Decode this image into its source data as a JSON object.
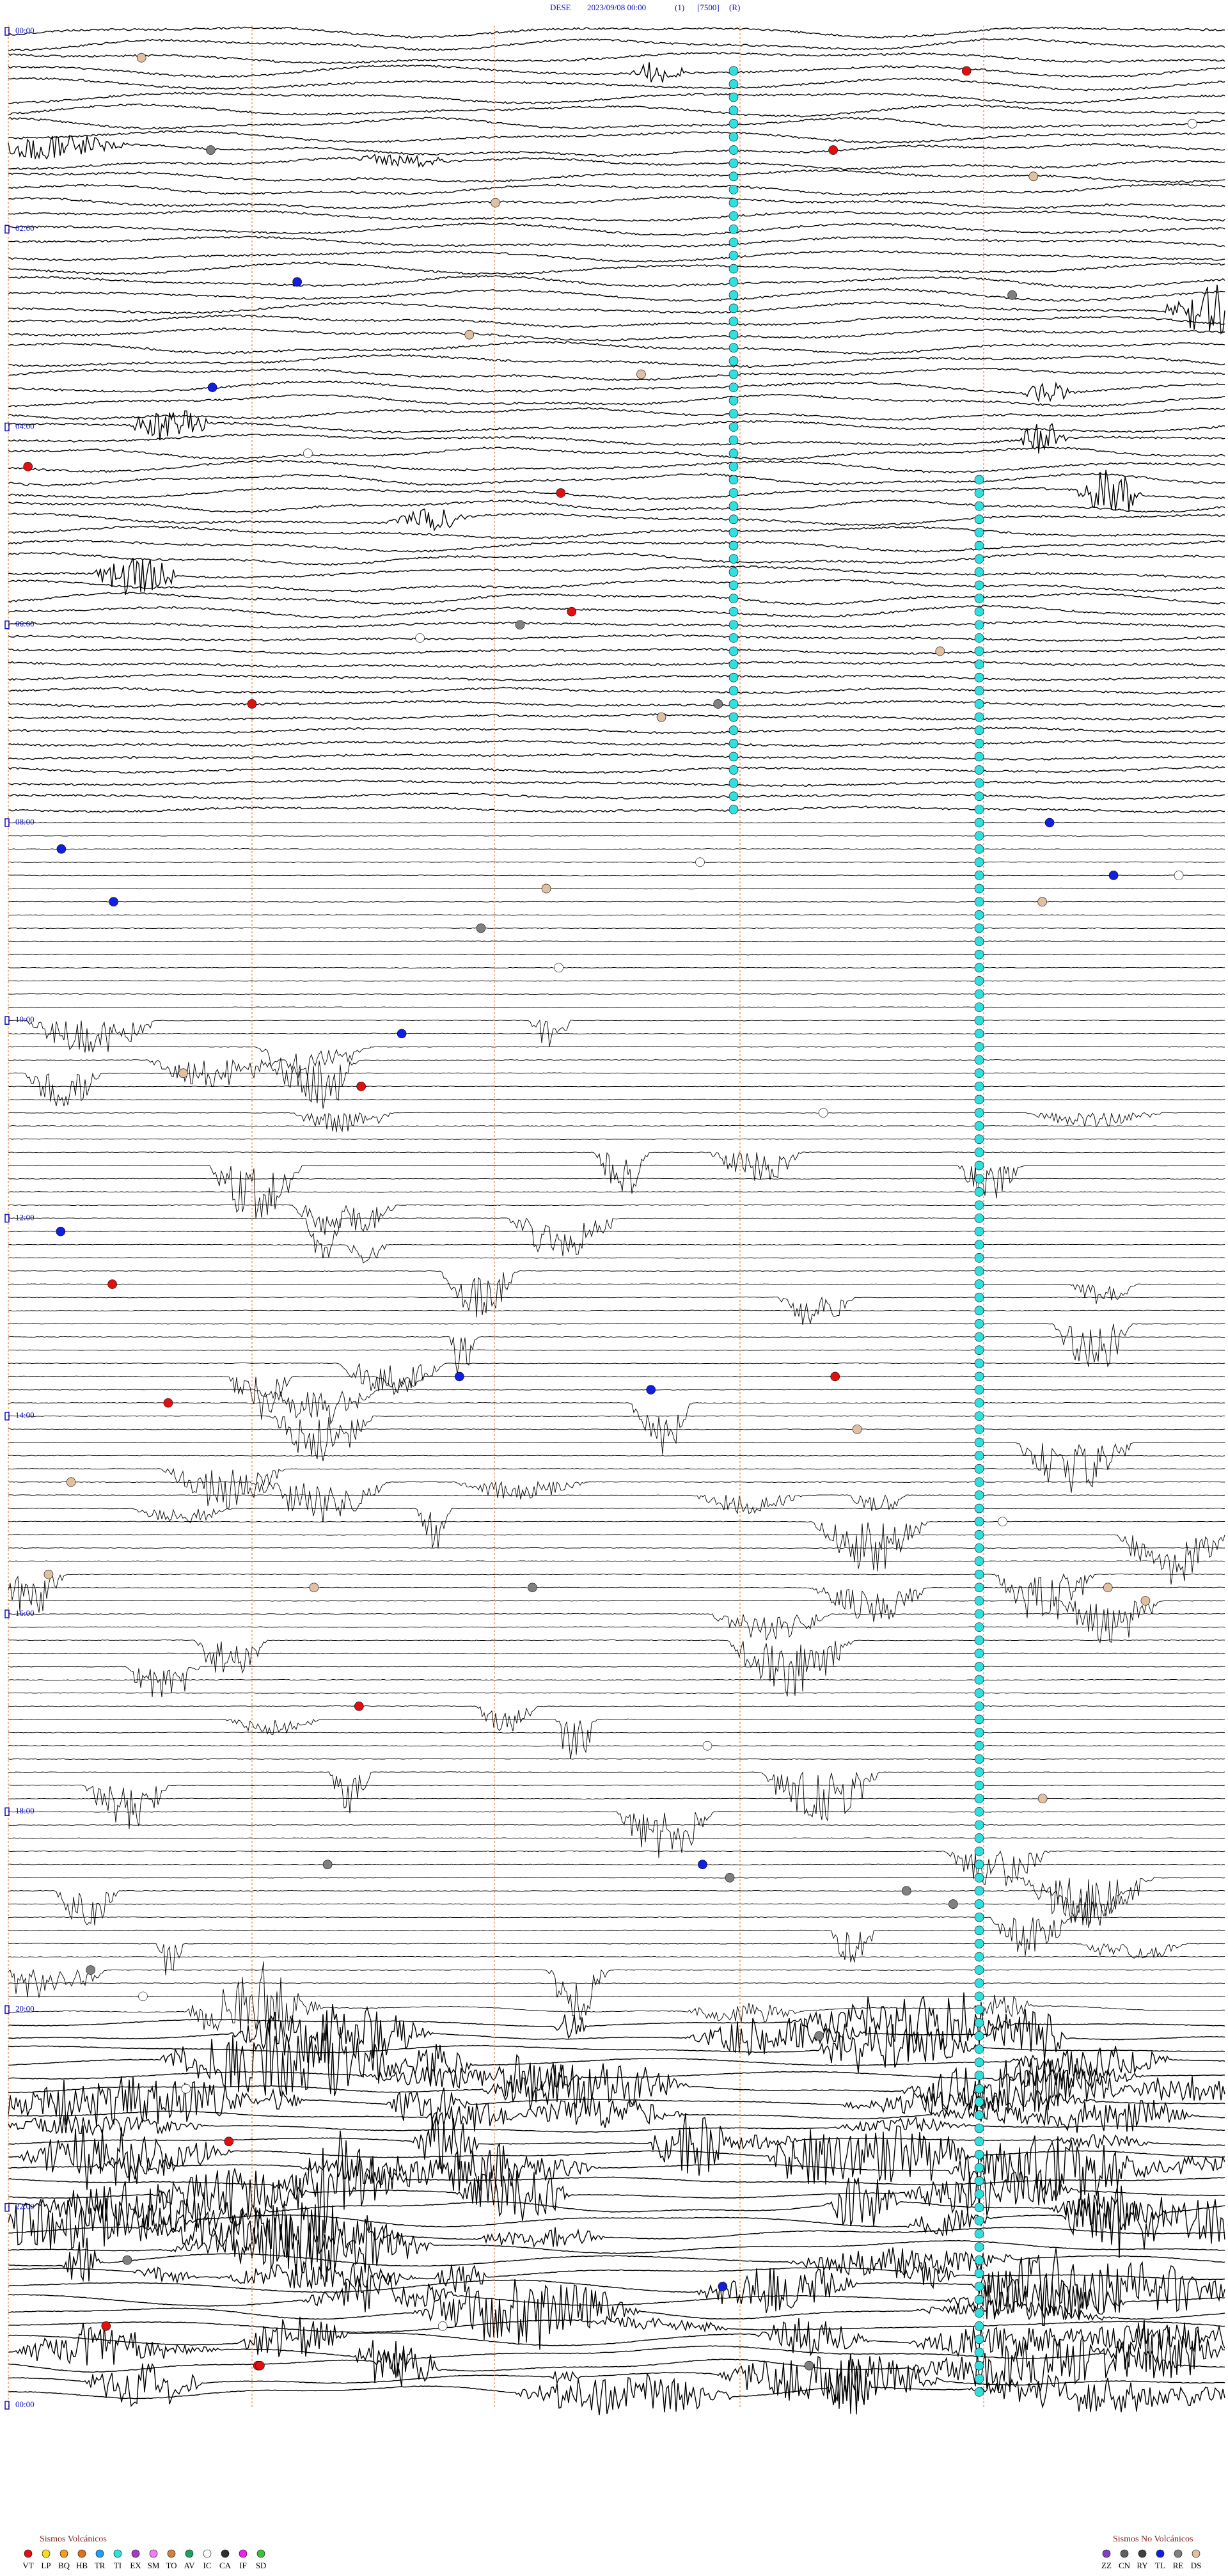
{
  "header": {
    "station": "DESE",
    "datetime": "2023/09/08 00:00",
    "channel": "(1)",
    "scale": "[7500]",
    "mode": "(R)"
  },
  "time_labels": [
    "00:00",
    "02:00",
    "04:00",
    "06:00",
    "08:00",
    "10:00",
    "12:00",
    "14:00",
    "16:00",
    "18:00",
    "20:00",
    "22:00",
    "00:00"
  ],
  "legend_volcanic": {
    "title": "Sismos Volcánicos",
    "items": [
      {
        "code": "VT",
        "color": "#e01010"
      },
      {
        "code": "LP",
        "color": "#f0e020"
      },
      {
        "code": "BQ",
        "color": "#f0a020"
      },
      {
        "code": "HB",
        "color": "#e07020"
      },
      {
        "code": "TR",
        "color": "#20a0f0"
      },
      {
        "code": "TI",
        "color": "#30e0e0"
      },
      {
        "code": "EX",
        "color": "#a040c0"
      },
      {
        "code": "SM",
        "color": "#f080f0"
      },
      {
        "code": "TO",
        "color": "#d08040"
      },
      {
        "code": "AV",
        "color": "#20a060"
      },
      {
        "code": "IC",
        "color": "#ffffff"
      },
      {
        "code": "CA",
        "color": "#303030"
      },
      {
        "code": "IF",
        "color": "#f020f0"
      },
      {
        "code": "SD",
        "color": "#40c040"
      }
    ]
  },
  "legend_nonvolcanic": {
    "title": "Sismos No Volcánicos",
    "items": [
      {
        "code": "ZZ",
        "color": "#8040c0"
      },
      {
        "code": "CN",
        "color": "#606060"
      },
      {
        "code": "RY",
        "color": "#404040"
      },
      {
        "code": "TL",
        "color": "#1020e0"
      },
      {
        "code": "RE",
        "color": "#808080"
      },
      {
        "code": "DS",
        "color": "#e0c0a0"
      }
    ]
  }
}
